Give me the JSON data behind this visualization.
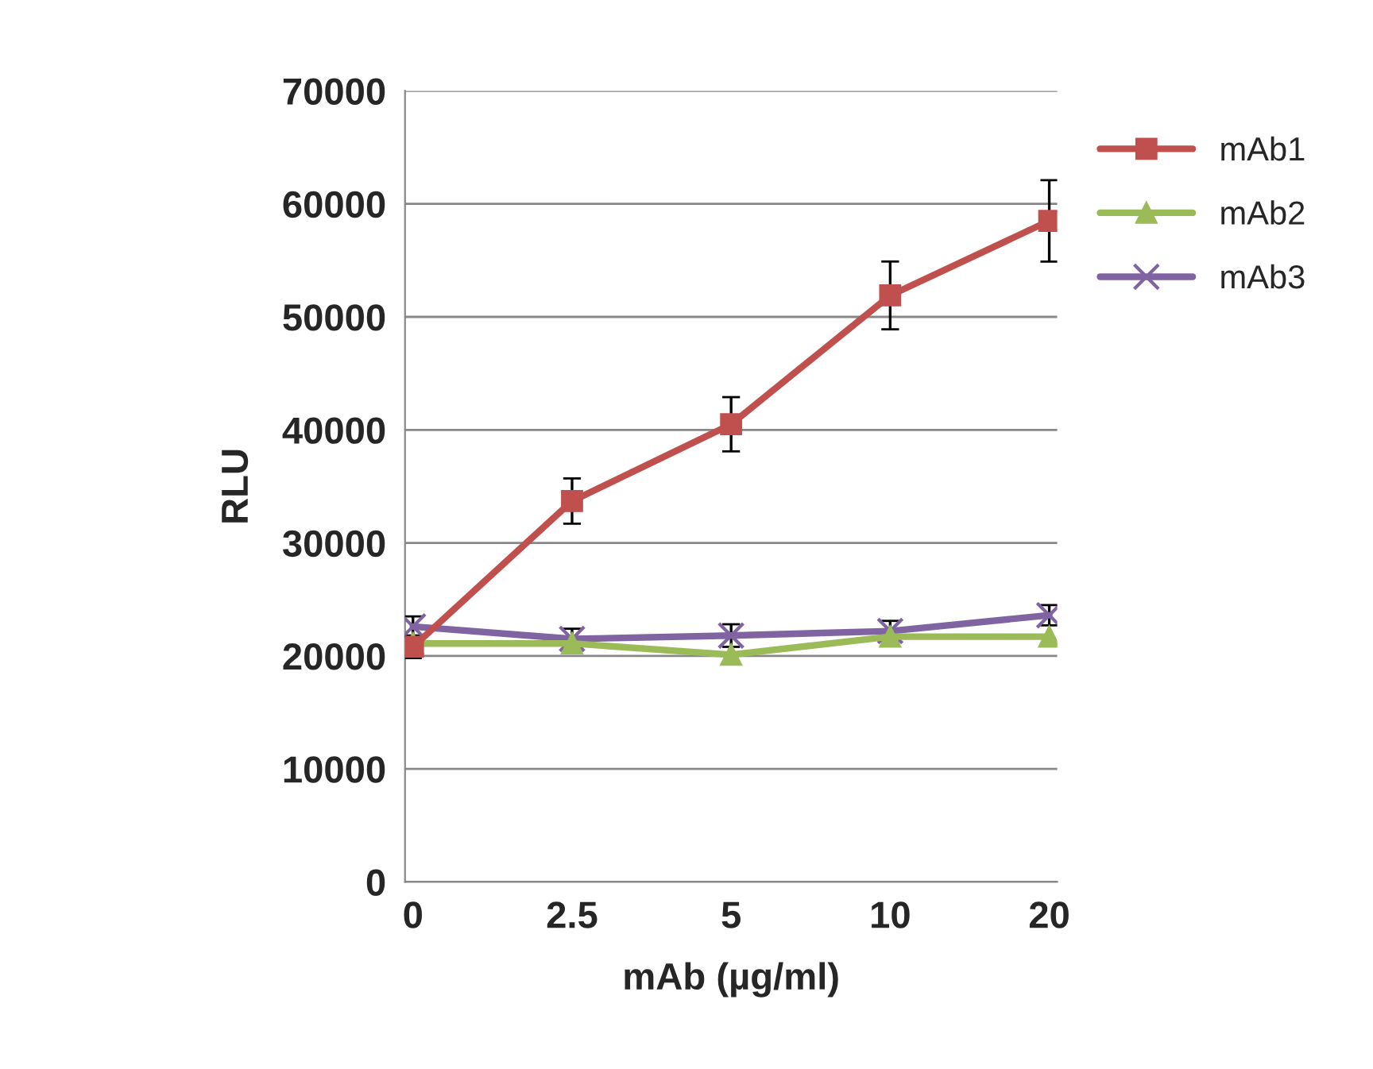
{
  "chart_data": {
    "type": "line",
    "xlabel": "mAb (µg/ml)",
    "ylabel": "RLU",
    "categories": [
      "0",
      "2.5",
      "5",
      "10",
      "20"
    ],
    "ylim": [
      0,
      70000
    ],
    "yticks": [
      0,
      10000,
      20000,
      30000,
      40000,
      50000,
      60000,
      70000
    ],
    "grid": "y",
    "legend": "top right",
    "series": [
      {
        "name": "mAb1",
        "color": "#c0504d",
        "marker": "square",
        "values": [
          20800,
          33700,
          40500,
          51900,
          58500
        ],
        "errors": [
          1000,
          2000,
          2400,
          3000,
          3600
        ]
      },
      {
        "name": "mAb2",
        "color": "#9bbb59",
        "marker": "triangle",
        "values": [
          21100,
          21100,
          20100,
          21700,
          21700
        ]
      },
      {
        "name": "mAb3",
        "color": "#8064a2",
        "marker": "cross",
        "values": [
          22600,
          21500,
          21800,
          22200,
          23600
        ],
        "errors": [
          900,
          900,
          1000,
          900,
          900
        ]
      }
    ]
  }
}
